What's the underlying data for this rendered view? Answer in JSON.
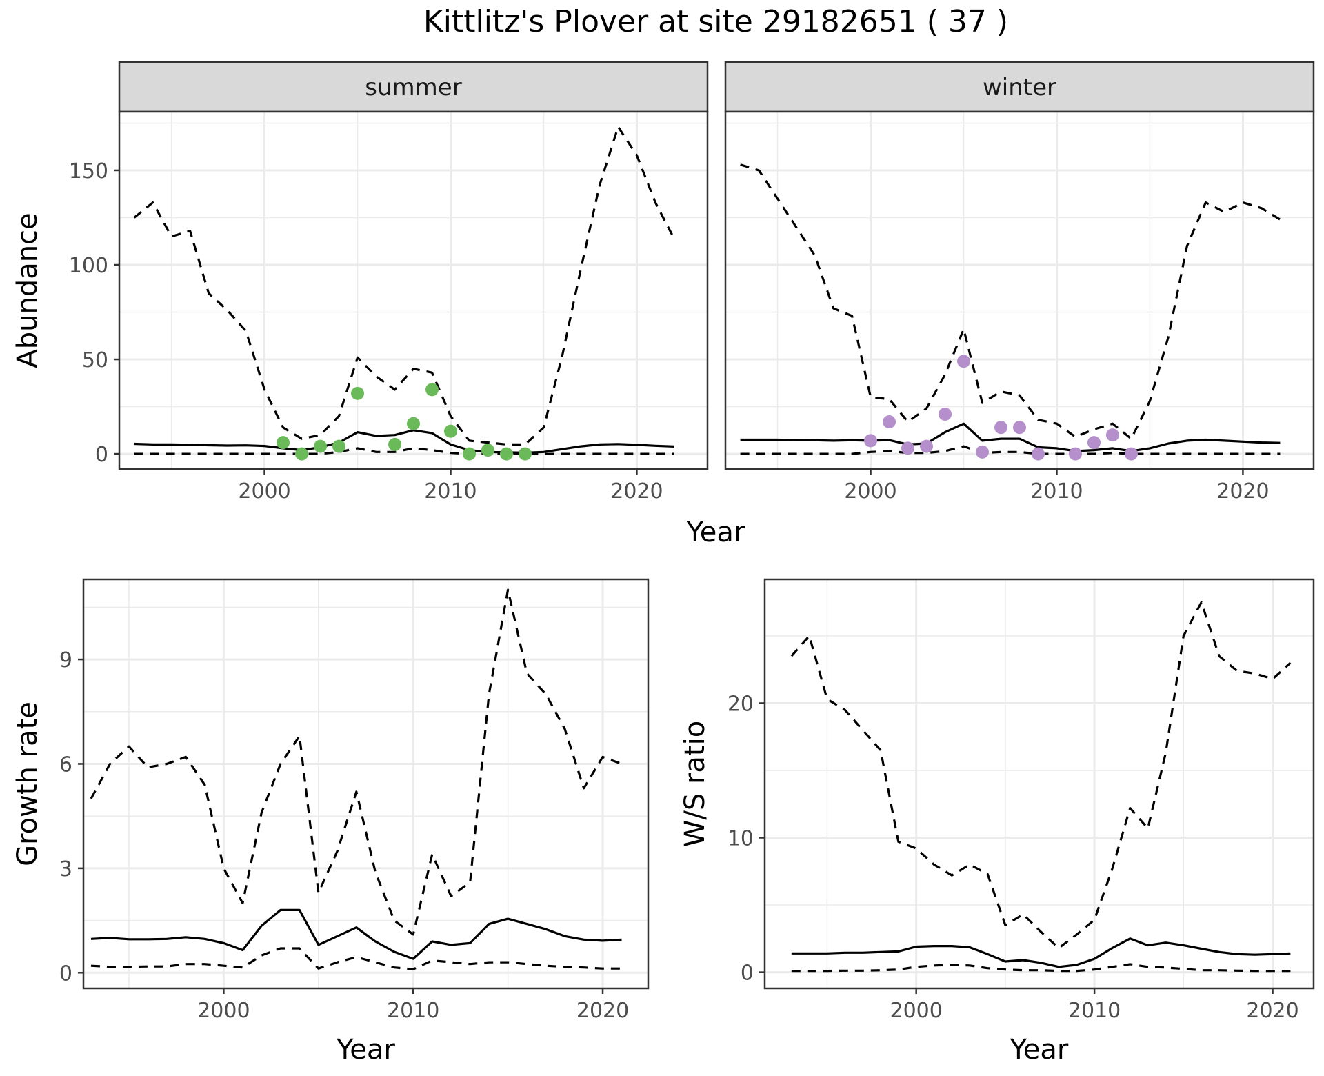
{
  "title": "Kittlitz's Plover at site 29182651 ( 37 )",
  "colors": {
    "summer_points": "#6aba5a",
    "winter_points": "#b48fcb",
    "line": "#000000",
    "strip_bg": "#d9d9d9",
    "grid": "#ebebeb",
    "panel_border": "#333333"
  },
  "chart_data": [
    {
      "type": "line",
      "facet": "summer",
      "xlabel": "",
      "ylabel": "Abundance",
      "xlim": [
        1992.2,
        2023.8
      ],
      "ylim": [
        -8,
        181
      ],
      "xticks": [
        2000,
        2010,
        2020
      ],
      "yticks": [
        0,
        50,
        100,
        150
      ],
      "grid": true,
      "series": [
        {
          "style": "solid",
          "x": [
            1993,
            1994,
            1995,
            1996,
            1997,
            1998,
            1999,
            2000,
            2001,
            2002,
            2003,
            2004,
            2005,
            2006,
            2007,
            2008,
            2009,
            2010,
            2011,
            2012,
            2013,
            2014,
            2015,
            2016,
            2017,
            2018,
            2019,
            2020,
            2021,
            2022
          ],
          "values": [
            5.3,
            5,
            5,
            4.8,
            4.6,
            4.4,
            4.5,
            4.2,
            3,
            2,
            3.5,
            6,
            11.5,
            9.5,
            10,
            12.5,
            11,
            5,
            2,
            1,
            0.8,
            0.6,
            1,
            2.5,
            4,
            5,
            5.2,
            4.8,
            4.3,
            3.9
          ]
        },
        {
          "style": "dashed",
          "x": [
            1993,
            1994,
            1995,
            1996,
            1997,
            1998,
            1999,
            2000,
            2001,
            2002,
            2003,
            2004,
            2005,
            2006,
            2007,
            2008,
            2009,
            2010,
            2011,
            2012,
            2013,
            2014,
            2015,
            2016,
            2017,
            2018,
            2019,
            2020,
            2021,
            2022
          ],
          "values": [
            125,
            133,
            115,
            118,
            85,
            76,
            65,
            34,
            14,
            8,
            10,
            20,
            51,
            41,
            34,
            45,
            43,
            20,
            7,
            6,
            5,
            5,
            14,
            52,
            98,
            142,
            173,
            158,
            133,
            114
          ]
        },
        {
          "style": "dashed",
          "x": [
            1993,
            1994,
            1995,
            1996,
            1997,
            1998,
            1999,
            2000,
            2001,
            2002,
            2003,
            2004,
            2005,
            2006,
            2007,
            2008,
            2009,
            2010,
            2011,
            2012,
            2013,
            2014,
            2015,
            2016,
            2017,
            2018,
            2019,
            2020,
            2021,
            2022
          ],
          "values": [
            0,
            0,
            0,
            0,
            0,
            0,
            0,
            0,
            0,
            0,
            0,
            1,
            3,
            1,
            1,
            3,
            2,
            0.5,
            0,
            0,
            0,
            0,
            0,
            0,
            0,
            0,
            0,
            0,
            0,
            0
          ]
        },
        {
          "style": "points",
          "x": [
            2001,
            2002,
            2003,
            2004,
            2005,
            2007,
            2008,
            2009,
            2010,
            2011,
            2012,
            2013,
            2014
          ],
          "values": [
            6,
            0,
            4,
            4,
            32,
            5,
            16,
            34,
            12,
            0,
            2,
            0,
            0
          ]
        }
      ]
    },
    {
      "type": "line",
      "facet": "winter",
      "xlabel": "",
      "ylabel": "",
      "xlim": [
        1992.2,
        2023.8
      ],
      "ylim": [
        -8,
        181
      ],
      "xticks": [
        2000,
        2010,
        2020
      ],
      "yticks": [
        0,
        50,
        100,
        150
      ],
      "grid": true,
      "series": [
        {
          "style": "solid",
          "x": [
            1993,
            1994,
            1995,
            1996,
            1997,
            1998,
            1999,
            2000,
            2001,
            2002,
            2003,
            2004,
            2005,
            2006,
            2007,
            2008,
            2009,
            2010,
            2011,
            2012,
            2013,
            2014,
            2015,
            2016,
            2017,
            2018,
            2019,
            2020,
            2021,
            2022
          ],
          "values": [
            7.5,
            7.5,
            7.5,
            7.3,
            7.2,
            7,
            7.2,
            7,
            7.3,
            5,
            5.5,
            11.5,
            16,
            7,
            8,
            8,
            3.5,
            3,
            1.5,
            2,
            3,
            1.5,
            3,
            5.5,
            7,
            7.5,
            7,
            6.5,
            6,
            5.8
          ]
        },
        {
          "style": "dashed",
          "x": [
            1993,
            1994,
            1995,
            1996,
            1997,
            1998,
            1999,
            2000,
            2001,
            2002,
            2003,
            2004,
            2005,
            2006,
            2007,
            2008,
            2009,
            2010,
            2011,
            2012,
            2013,
            2014,
            2015,
            2016,
            2017,
            2018,
            2019,
            2020,
            2021,
            2022
          ],
          "values": [
            153,
            150,
            135,
            120,
            105,
            77,
            73,
            30,
            29,
            17,
            24,
            42,
            66,
            27,
            33,
            31,
            18,
            16,
            9,
            13,
            16,
            8,
            28,
            62,
            110,
            133,
            128,
            133,
            130,
            124
          ]
        },
        {
          "style": "dashed",
          "x": [
            1993,
            1994,
            1995,
            1996,
            1997,
            1998,
            1999,
            2000,
            2001,
            2002,
            2003,
            2004,
            2005,
            2006,
            2007,
            2008,
            2009,
            2010,
            2011,
            2012,
            2013,
            2014,
            2015,
            2016,
            2017,
            2018,
            2019,
            2020,
            2021,
            2022
          ],
          "values": [
            0,
            0,
            0,
            0,
            0,
            0,
            0,
            1,
            1.5,
            0.5,
            0.5,
            1.5,
            4,
            0.5,
            1,
            1,
            0,
            0,
            0,
            0,
            0.5,
            0,
            0,
            0,
            0,
            0,
            0,
            0,
            0,
            0
          ]
        },
        {
          "style": "points",
          "x": [
            2000,
            2001,
            2002,
            2003,
            2004,
            2005,
            2006,
            2007,
            2008,
            2009,
            2011,
            2012,
            2013,
            2014
          ],
          "values": [
            7,
            17,
            3,
            4,
            21,
            49,
            1,
            14,
            14,
            0,
            0,
            6,
            10,
            0
          ]
        }
      ]
    },
    {
      "type": "line",
      "facet": "",
      "xlabel": "Year",
      "ylabel": "Growth rate",
      "xlim": [
        1992.6,
        2022.4
      ],
      "ylim": [
        -0.45,
        11.3
      ],
      "xticks": [
        2000,
        2010,
        2020
      ],
      "yticks": [
        0,
        3,
        6,
        9
      ],
      "grid": true,
      "series": [
        {
          "style": "solid",
          "x": [
            1993,
            1994,
            1995,
            1996,
            1997,
            1998,
            1999,
            2000,
            2001,
            2002,
            2003,
            2004,
            2005,
            2006,
            2007,
            2008,
            2009,
            2010,
            2011,
            2012,
            2013,
            2014,
            2015,
            2016,
            2017,
            2018,
            2019,
            2020,
            2021
          ],
          "values": [
            0.97,
            1,
            0.96,
            0.96,
            0.97,
            1.02,
            0.97,
            0.85,
            0.65,
            1.35,
            1.8,
            1.8,
            0.8,
            1.05,
            1.3,
            0.9,
            0.6,
            0.4,
            0.9,
            0.8,
            0.85,
            1.4,
            1.55,
            1.4,
            1.25,
            1.05,
            0.95,
            0.92,
            0.95
          ]
        },
        {
          "style": "dashed",
          "x": [
            1993,
            1994,
            1995,
            1996,
            1997,
            1998,
            1999,
            2000,
            2001,
            2002,
            2003,
            2004,
            2005,
            2006,
            2007,
            2008,
            2009,
            2010,
            2011,
            2012,
            2013,
            2014,
            2015,
            2016,
            2017,
            2018,
            2019,
            2020,
            2021
          ],
          "values": [
            5,
            6,
            6.5,
            5.9,
            6,
            6.2,
            5.4,
            3,
            2,
            4.6,
            6,
            6.8,
            2.3,
            3.5,
            5.2,
            2.9,
            1.5,
            1.1,
            3.4,
            2.2,
            2.6,
            8,
            11,
            8.6,
            8,
            7,
            5.3,
            6.2,
            6
          ]
        },
        {
          "style": "dashed",
          "x": [
            1993,
            1994,
            1995,
            1996,
            1997,
            1998,
            1999,
            2000,
            2001,
            2002,
            2003,
            2004,
            2005,
            2006,
            2007,
            2008,
            2009,
            2010,
            2011,
            2012,
            2013,
            2014,
            2015,
            2016,
            2017,
            2018,
            2019,
            2020,
            2021
          ],
          "values": [
            0.2,
            0.17,
            0.17,
            0.18,
            0.18,
            0.25,
            0.25,
            0.2,
            0.15,
            0.5,
            0.7,
            0.7,
            0.12,
            0.3,
            0.45,
            0.3,
            0.15,
            0.1,
            0.35,
            0.3,
            0.25,
            0.3,
            0.3,
            0.25,
            0.2,
            0.17,
            0.15,
            0.12,
            0.12
          ]
        }
      ]
    },
    {
      "type": "line",
      "facet": "",
      "xlabel": "Year",
      "ylabel": "W/S ratio",
      "xlim": [
        1991.5,
        2022.3
      ],
      "ylim": [
        -1.2,
        29.2
      ],
      "xticks": [
        2000,
        2010,
        2020
      ],
      "yticks": [
        0,
        10,
        20
      ],
      "grid": true,
      "series": [
        {
          "style": "solid",
          "x": [
            1993,
            1994,
            1995,
            1996,
            1997,
            1998,
            1999,
            2000,
            2001,
            2002,
            2003,
            2004,
            2005,
            2006,
            2007,
            2008,
            2009,
            2010,
            2011,
            2012,
            2013,
            2014,
            2015,
            2016,
            2017,
            2018,
            2019,
            2020,
            2021
          ],
          "values": [
            1.4,
            1.4,
            1.4,
            1.45,
            1.45,
            1.5,
            1.55,
            1.9,
            1.95,
            1.95,
            1.85,
            1.35,
            0.8,
            0.9,
            0.7,
            0.4,
            0.55,
            1,
            1.8,
            2.5,
            2,
            2.2,
            2,
            1.75,
            1.5,
            1.35,
            1.3,
            1.35,
            1.4
          ]
        },
        {
          "style": "dashed",
          "x": [
            1993,
            1994,
            1995,
            1996,
            1997,
            1998,
            1999,
            2000,
            2001,
            2002,
            2003,
            2004,
            2005,
            2006,
            2007,
            2008,
            2009,
            2010,
            2011,
            2012,
            2013,
            2014,
            2015,
            2016,
            2017,
            2018,
            2019,
            2020,
            2021
          ],
          "values": [
            23.5,
            25,
            20.3,
            19.5,
            18,
            16.5,
            9.7,
            9.2,
            8,
            7.2,
            8,
            7.3,
            3.5,
            4.3,
            3,
            1.8,
            2.8,
            3.9,
            7.7,
            12.2,
            10.7,
            16.3,
            25,
            27.5,
            23.5,
            22.4,
            22.2,
            21.8,
            23
          ]
        },
        {
          "style": "dashed",
          "x": [
            1993,
            1994,
            1995,
            1996,
            1997,
            1998,
            1999,
            2000,
            2001,
            2002,
            2003,
            2004,
            2005,
            2006,
            2007,
            2008,
            2009,
            2010,
            2011,
            2012,
            2013,
            2014,
            2015,
            2016,
            2017,
            2018,
            2019,
            2020,
            2021
          ],
          "values": [
            0.1,
            0.1,
            0.1,
            0.12,
            0.12,
            0.15,
            0.2,
            0.4,
            0.5,
            0.55,
            0.5,
            0.3,
            0.2,
            0.15,
            0.15,
            0.1,
            0.1,
            0.2,
            0.4,
            0.6,
            0.4,
            0.35,
            0.25,
            0.15,
            0.15,
            0.12,
            0.1,
            0.1,
            0.1
          ]
        }
      ]
    }
  ]
}
